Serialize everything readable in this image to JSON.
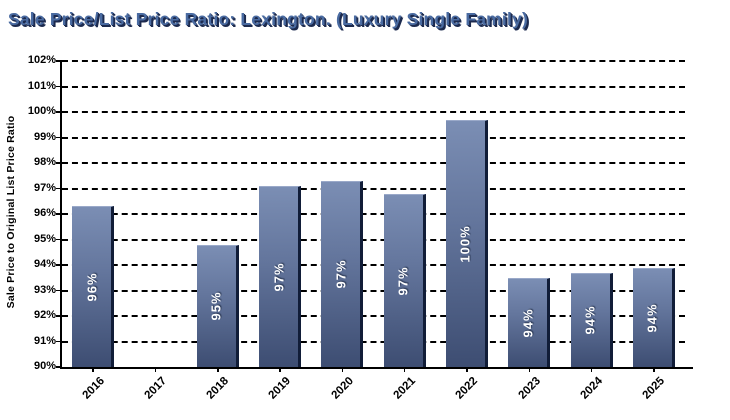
{
  "chart_data": {
    "type": "bar",
    "title": "Sale Price/List Price Ratio: Lexington. (Luxury Single Family)",
    "ylabel": "Sale Price to Original List Price Ratio",
    "xlabel": "",
    "categories": [
      "2016",
      "2017",
      "2018",
      "2019",
      "2020",
      "2021",
      "2022",
      "2023",
      "2024",
      "2025"
    ],
    "series": [
      {
        "name": "Sale Price to Original List Price Ratio",
        "values": [
          96.3,
          null,
          94.8,
          97.1,
          97.3,
          96.8,
          99.7,
          93.5,
          93.7,
          93.9
        ],
        "data_labels": [
          "96%",
          "",
          "95%",
          "97%",
          "97%",
          "97%",
          "100%",
          "94%",
          "94%",
          "94%"
        ]
      }
    ],
    "ylim": [
      90,
      102
    ],
    "ytick_step": 1,
    "ytick_suffix": "%",
    "grid": {
      "horizontal": true,
      "style": "dashed",
      "color": "#000000"
    },
    "legend": "none",
    "colors": {
      "title_fill": "#4a6ba1",
      "title_shadow": "#1c2a4e",
      "bar_gradient_top": "#7b8eb4",
      "bar_gradient_bottom": "#3d4d72",
      "bar_right_edge": "#111d38",
      "bar_top_highlight": "#9aa9c9",
      "bar_label_text": "#ffffff",
      "axis": "#000000",
      "tick_text": "#000000",
      "background": "#ffffff"
    }
  }
}
